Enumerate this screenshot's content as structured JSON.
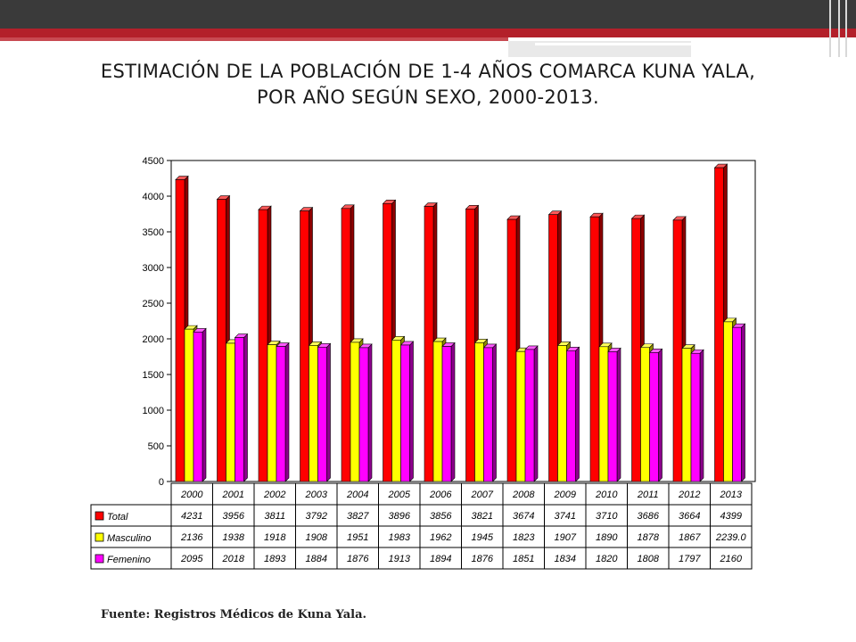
{
  "slide": {
    "title_line1": "ESTIMACIÓN DE LA POBLACIÓN DE 1-4  AÑOS COMARCA KUNA YALA,",
    "title_line2": "POR AÑO SEGÚN SEXO, 2000-2013.",
    "source": "Fuente: Registros Médicos de Kuna Yala."
  },
  "chart_data": {
    "type": "bar",
    "title": "",
    "categories": [
      "2000",
      "2001",
      "2002",
      "2003",
      "2004",
      "2005",
      "2006",
      "2007",
      "2008",
      "2009",
      "2010",
      "2011",
      "2012",
      "2013"
    ],
    "series": [
      {
        "name": "Total",
        "color": "#ff0000",
        "values": [
          4231,
          3956,
          3811,
          3792,
          3827,
          3896,
          3856,
          3821,
          3674,
          3741,
          3710,
          3686,
          3664,
          4399
        ],
        "labels": [
          "4231",
          "3956",
          "3811",
          "3792",
          "3827",
          "3896",
          "3856",
          "3821",
          "3674",
          "3741",
          "3710",
          "3686",
          "3664",
          "4399"
        ]
      },
      {
        "name": "Masculino",
        "color": "#ffff00",
        "values": [
          2136,
          1938,
          1918,
          1908,
          1951,
          1983,
          1962,
          1945,
          1823,
          1907,
          1890,
          1878,
          1867,
          2239.0
        ],
        "labels": [
          "2136",
          "1938",
          "1918",
          "1908",
          "1951",
          "1983",
          "1962",
          "1945",
          "1823",
          "1907",
          "1890",
          "1878",
          "1867",
          "2239.0"
        ]
      },
      {
        "name": "Femenino",
        "color": "#ff00ff",
        "values": [
          2095,
          2018,
          1893,
          1884,
          1876,
          1913,
          1894,
          1876,
          1851,
          1834,
          1820,
          1808,
          1797,
          2160
        ],
        "labels": [
          "2095",
          "2018",
          "1893",
          "1884",
          "1876",
          "1913",
          "1894",
          "1876",
          "1851",
          "1834",
          "1820",
          "1808",
          "1797",
          "2160"
        ]
      }
    ],
    "yticks": [
      "0",
      "500",
      "1000",
      "1500",
      "2000",
      "2500",
      "3000",
      "3500",
      "4000",
      "4500"
    ],
    "ylim": [
      0,
      4500
    ],
    "grid": false,
    "legend": "data-table-left"
  }
}
